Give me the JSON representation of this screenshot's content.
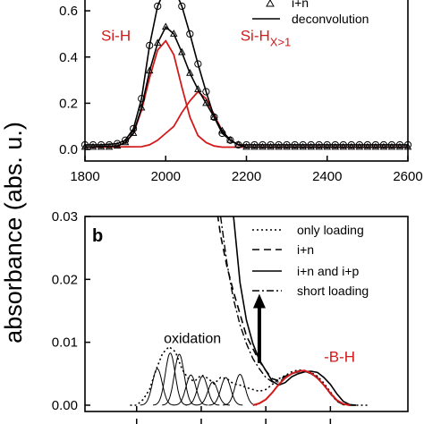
{
  "colors": {
    "black": "#000000",
    "red": "#d21a1a"
  },
  "ylabel": "absorbance (abs. u.)",
  "chart_data": [
    {
      "type": "line",
      "panel": "a",
      "xlim": [
        1800,
        2600
      ],
      "ylim": [
        -0.05,
        0.67
      ],
      "xticks": [
        1800,
        2000,
        2200,
        2400,
        2600
      ],
      "yticks": [
        0.0,
        0.2,
        0.4,
        0.6
      ],
      "xtick_labels": [
        "1800",
        "2000",
        "2200",
        "2400",
        "2600"
      ],
      "ytick_labels": [
        "0.0",
        "0.2",
        "0.4",
        "0.6"
      ],
      "legend": {
        "placement": "top-right",
        "entries": [
          {
            "label": "i+n",
            "style": "open-triangle"
          },
          {
            "label": "deconvolution",
            "style": "solid"
          }
        ]
      },
      "annotations": [
        {
          "text": "Si-H",
          "color": "#d21a1a",
          "x": 1840,
          "y": 0.47
        },
        {
          "text": "Si-H",
          "subscript": "X>1",
          "color": "#d21a1a",
          "x": 2185,
          "y": 0.47
        }
      ],
      "series": [
        {
          "style": "open-circle markers",
          "x": [
            1800,
            1820,
            1840,
            1860,
            1880,
            1900,
            1920,
            1940,
            1960,
            1980,
            2000,
            2020,
            2040,
            2060,
            2080,
            2100,
            2120,
            2140,
            2160,
            2180,
            2200,
            2220,
            2240,
            2260,
            2280,
            2300,
            2320,
            2340,
            2360,
            2380,
            2400,
            2420,
            2440,
            2460,
            2480,
            2500,
            2520,
            2540,
            2560,
            2580,
            2600
          ],
          "y": [
            0.02,
            0.02,
            0.02,
            0.02,
            0.025,
            0.04,
            0.09,
            0.22,
            0.45,
            0.62,
            0.7,
            0.7,
            0.62,
            0.5,
            0.37,
            0.25,
            0.14,
            0.07,
            0.04,
            0.02,
            0.02,
            0.02,
            0.02,
            0.02,
            0.02,
            0.02,
            0.02,
            0.02,
            0.02,
            0.02,
            0.02,
            0.02,
            0.02,
            0.02,
            0.02,
            0.02,
            0.02,
            0.02,
            0.02,
            0.02,
            0.02
          ]
        },
        {
          "label": "i+n",
          "style": "open-triangle markers",
          "x": [
            1800,
            1820,
            1840,
            1860,
            1880,
            1900,
            1920,
            1940,
            1960,
            1980,
            2000,
            2020,
            2040,
            2060,
            2080,
            2100,
            2120,
            2140,
            2160,
            2180,
            2200,
            2220,
            2240,
            2260,
            2280,
            2300,
            2320,
            2340,
            2360,
            2380,
            2400,
            2420,
            2440,
            2460,
            2480,
            2500,
            2520,
            2540,
            2560,
            2580,
            2600
          ],
          "y": [
            0.01,
            0.01,
            0.01,
            0.01,
            0.015,
            0.03,
            0.07,
            0.18,
            0.34,
            0.46,
            0.53,
            0.5,
            0.42,
            0.33,
            0.26,
            0.2,
            0.14,
            0.08,
            0.04,
            0.02,
            0.01,
            0.01,
            0.01,
            0.01,
            0.01,
            0.01,
            0.01,
            0.01,
            0.01,
            0.01,
            0.01,
            0.01,
            0.01,
            0.01,
            0.01,
            0.01,
            0.01,
            0.01,
            0.01,
            0.01,
            0.01
          ]
        },
        {
          "label": "deconvolution",
          "style": "solid black (fit)",
          "x": [
            1800,
            1840,
            1880,
            1900,
            1920,
            1940,
            1960,
            1980,
            2000,
            2020,
            2040,
            2060,
            2080,
            2100,
            2120,
            2140,
            2160,
            2180,
            2200,
            2240,
            2300,
            2400,
            2600
          ],
          "y": [
            0.02,
            0.02,
            0.025,
            0.04,
            0.09,
            0.22,
            0.45,
            0.62,
            0.7,
            0.7,
            0.62,
            0.5,
            0.37,
            0.25,
            0.14,
            0.07,
            0.04,
            0.02,
            0.02,
            0.02,
            0.02,
            0.02,
            0.02
          ]
        },
        {
          "label": "deconvolution",
          "style": "solid black (fit)",
          "x": [
            1800,
            1880,
            1900,
            1920,
            1940,
            1960,
            1980,
            2000,
            2020,
            2040,
            2060,
            2080,
            2100,
            2120,
            2140,
            2160,
            2180,
            2200,
            2240,
            2300,
            2600
          ],
          "y": [
            0.01,
            0.015,
            0.03,
            0.07,
            0.18,
            0.34,
            0.46,
            0.53,
            0.5,
            0.42,
            0.33,
            0.26,
            0.2,
            0.14,
            0.08,
            0.04,
            0.02,
            0.01,
            0.01,
            0.01,
            0.01
          ]
        },
        {
          "label": "Si-H",
          "style": "red component",
          "x": [
            1800,
            1880,
            1900,
            1920,
            1940,
            1960,
            1980,
            2000,
            2020,
            2040,
            2060,
            2080,
            2100,
            2120,
            2140,
            2200,
            2600
          ],
          "y": [
            0.01,
            0.015,
            0.03,
            0.07,
            0.17,
            0.31,
            0.43,
            0.47,
            0.41,
            0.27,
            0.14,
            0.06,
            0.03,
            0.015,
            0.01,
            0.01,
            0.01
          ]
        },
        {
          "label": "Si-HX>1",
          "style": "red component",
          "x": [
            1800,
            1940,
            1960,
            1980,
            2000,
            2020,
            2040,
            2060,
            2080,
            2100,
            2120,
            2140,
            2160,
            2180,
            2200,
            2600
          ],
          "y": [
            0.01,
            0.012,
            0.02,
            0.04,
            0.07,
            0.1,
            0.16,
            0.21,
            0.25,
            0.22,
            0.15,
            0.08,
            0.04,
            0.02,
            0.01,
            0.01
          ]
        }
      ]
    },
    {
      "type": "line",
      "panel": "b",
      "panel_label": "b",
      "xlim": [
        600,
        3100
      ],
      "ylim": [
        -0.001,
        0.03
      ],
      "yticks": [
        0.0,
        0.01,
        0.02,
        0.03
      ],
      "ytick_labels": [
        "0.00",
        "0.01",
        "0.02",
        "0.03"
      ],
      "legend": {
        "placement": "top-right",
        "entries": [
          {
            "label": "only loading",
            "style": "dotted"
          },
          {
            "label": "i+n",
            "style": "dashed"
          },
          {
            "label": "i+p",
            "style": "solid",
            "full_label": "i+n and i+p"
          },
          {
            "label": "short loading",
            "style": "dash-dot"
          }
        ]
      },
      "annotations": [
        {
          "text": "oxidation",
          "color": "#000000",
          "x": 1210,
          "y": 0.0099
        },
        {
          "text": "-B-H",
          "color": "#d21a1a",
          "x": 2450,
          "y": 0.0069
        },
        {
          "text": "arrow",
          "x": 1950,
          "y_from": 0.0067,
          "y_to": 0.0177
        }
      ],
      "series": [
        {
          "label": "only loading",
          "style": "dotted",
          "x": [
            950,
            1000,
            1050,
            1100,
            1150,
            1200,
            1250,
            1300,
            1350,
            1400,
            1450,
            1500,
            1550,
            1600,
            1650,
            1700,
            1750,
            1800,
            1850,
            1900,
            1950,
            2000,
            2050,
            2100,
            2150,
            2200,
            2250,
            2300,
            2350,
            2400,
            2450,
            2500,
            2550,
            2600,
            2650,
            2700,
            2750,
            2800
          ],
          "y": [
            0.0,
            0.0,
            0.0009,
            0.0025,
            0.0056,
            0.0082,
            0.0093,
            0.0085,
            0.0058,
            0.0042,
            0.0038,
            0.0048,
            0.0043,
            0.0034,
            0.0044,
            0.0042,
            0.0034,
            0.0032,
            0.0028,
            0.0025,
            0.0022,
            0.0025,
            0.0033,
            0.0042,
            0.0047,
            0.0053,
            0.0056,
            0.0055,
            0.0052,
            0.0046,
            0.0035,
            0.0021,
            0.0007,
            0.0001,
            0.0,
            0.0,
            0.0,
            0.0
          ]
        },
        {
          "label": "i+n",
          "style": "dashed",
          "x": [
            1600,
            1650,
            1700,
            1750,
            1800,
            1850,
            1900,
            1950,
            2000,
            2050,
            2100,
            2150,
            2200,
            2250,
            2300,
            2350,
            2400,
            2450,
            2500,
            2550,
            2600,
            2650,
            2700
          ],
          "y": [
            0.034,
            0.027,
            0.022,
            0.018,
            0.0145,
            0.011,
            0.009,
            0.007,
            0.0055,
            0.0042,
            0.0039,
            0.0046,
            0.005,
            0.0053,
            0.0054,
            0.0051,
            0.0044,
            0.0032,
            0.0019,
            0.0007,
            0.0001,
            0.0,
            0.0
          ]
        },
        {
          "label": "i+n and i+p",
          "style": "solid",
          "x": [
            1750,
            1800,
            1850,
            1900,
            1950,
            2000,
            2050,
            2100,
            2150,
            2200,
            2250,
            2300,
            2350,
            2400,
            2450,
            2500,
            2550,
            2600,
            2650,
            2700
          ],
          "y": [
            0.03,
            0.0195,
            0.0135,
            0.0098,
            0.0072,
            0.0055,
            0.0038,
            0.0032,
            0.0036,
            0.0045,
            0.005,
            0.0053,
            0.0054,
            0.0052,
            0.0044,
            0.0033,
            0.0018,
            0.0006,
            0.0001,
            0.0
          ]
        },
        {
          "label": "short loading",
          "style": "dash-dot",
          "x": [
            1650,
            1700,
            1750,
            1800,
            1850,
            1900,
            1950,
            2000,
            2050,
            2100,
            2150,
            2200,
            2250,
            2300,
            2350,
            2400,
            2450,
            2500,
            2550,
            2600
          ],
          "y": [
            0.03,
            0.0225,
            0.0168,
            0.0128,
            0.0098,
            0.0074,
            0.0058,
            0.0044,
            0.0037,
            0.0037,
            0.0043,
            0.005,
            0.0054,
            0.0054,
            0.005,
            0.0043,
            0.0032,
            0.0018,
            0.0006,
            0.0001
          ]
        },
        {
          "label": "-B-H",
          "style": "red fit",
          "x": [
            1900,
            1950,
            2000,
            2050,
            2100,
            2150,
            2200,
            2250,
            2300,
            2350,
            2400,
            2450,
            2500,
            2550,
            2600,
            2650
          ],
          "y": [
            0.0,
            0.0003,
            0.0009,
            0.002,
            0.0033,
            0.0043,
            0.005,
            0.0054,
            0.0055,
            0.0051,
            0.0043,
            0.0032,
            0.0019,
            0.0008,
            0.0002,
            0.0
          ]
        }
      ],
      "components": {
        "style": "thin black gaussians",
        "centers": [
          1160,
          1260,
          1330,
          1420,
          1510,
          1590,
          1690,
          1800
        ],
        "amplitudes": [
          0.0058,
          0.0083,
          0.0081,
          0.0048,
          0.0046,
          0.0037,
          0.0044,
          0.0049
        ],
        "width": 38
      }
    }
  ]
}
